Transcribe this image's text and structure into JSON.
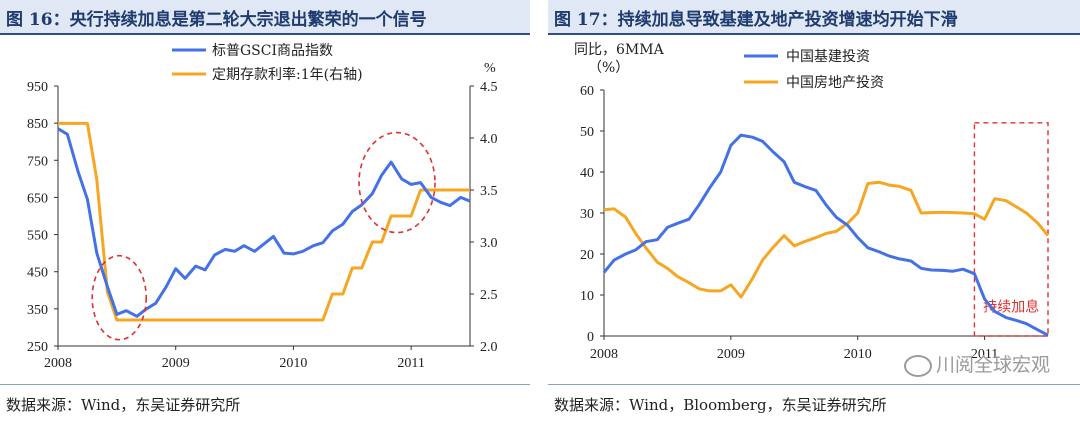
{
  "panels": [
    {
      "title": "图 16：央行持续加息是第二轮大宗退出繁荣的一个信号",
      "source": "数据来源：Wind，东吴证券研究所"
    },
    {
      "title": "图 17：持续加息导致基建及地产投资增速均开始下滑",
      "source": "数据来源：Wind，Bloomberg，东吴证券研究所"
    }
  ],
  "watermark": "川阅全球宏观",
  "colors": {
    "blue": "#4472e6",
    "orange": "#f5a623",
    "red_dash": "#e03030",
    "title_text": "#1f3b6f"
  },
  "chart_data": [
    {
      "type": "line",
      "y_left_ticks": [
        "950",
        "850",
        "750",
        "650",
        "550",
        "450",
        "350",
        "250"
      ],
      "ylim_left": [
        250,
        950
      ],
      "y_right_label": "%",
      "y_right_ticks": [
        "4.5",
        "4.0",
        "3.5",
        "3.0",
        "2.5",
        "2.0"
      ],
      "ylim_right": [
        2.0,
        4.5
      ],
      "x_ticks": [
        "2008",
        "2009",
        "2010",
        "2011"
      ],
      "xlim": [
        2008.0,
        2011.5
      ],
      "series": [
        {
          "name": "标普GSCI商品指数",
          "axis": "left",
          "color": "#4472e6",
          "x": [
            2008.0,
            2008.08,
            2008.17,
            2008.25,
            2008.33,
            2008.42,
            2008.5,
            2008.58,
            2008.67,
            2008.75,
            2008.83,
            2008.92,
            2009.0,
            2009.08,
            2009.17,
            2009.25,
            2009.33,
            2009.42,
            2009.5,
            2009.58,
            2009.67,
            2009.75,
            2009.83,
            2009.92,
            2010.0,
            2010.08,
            2010.17,
            2010.25,
            2010.33,
            2010.42,
            2010.5,
            2010.58,
            2010.67,
            2010.75,
            2010.83,
            2010.92,
            2011.0,
            2011.08,
            2011.17,
            2011.25,
            2011.33,
            2011.42,
            2011.5
          ],
          "values": [
            835,
            820,
            720,
            645,
            500,
            410,
            335,
            345,
            330,
            350,
            365,
            410,
            458,
            432,
            465,
            455,
            495,
            510,
            505,
            520,
            505,
            525,
            545,
            500,
            498,
            505,
            520,
            528,
            560,
            578,
            612,
            630,
            660,
            710,
            745,
            700,
            685,
            690,
            650,
            637,
            628,
            650,
            640
          ]
        },
        {
          "name": "定期存款利率:1年(右轴)",
          "axis": "right",
          "color": "#f5a623",
          "x": [
            2008.0,
            2008.25,
            2008.33,
            2008.42,
            2008.5,
            2008.58,
            2008.67,
            2008.83,
            2009.0,
            2010.0,
            2010.25,
            2010.33,
            2010.42,
            2010.5,
            2010.58,
            2010.67,
            2010.75,
            2010.83,
            2010.92,
            2011.0,
            2011.08,
            2011.25,
            2011.5
          ],
          "values": [
            4.14,
            4.14,
            3.6,
            2.52,
            2.25,
            2.25,
            2.25,
            2.25,
            2.25,
            2.25,
            2.25,
            2.5,
            2.5,
            2.75,
            2.75,
            3.0,
            3.0,
            3.25,
            3.25,
            3.25,
            3.5,
            3.5,
            3.5
          ]
        }
      ]
    },
    {
      "type": "line",
      "ylabel": "同比，6MMA（%）",
      "y_ticks": [
        "60",
        "50",
        "40",
        "30",
        "20",
        "10",
        "0"
      ],
      "ylim": [
        0,
        60
      ],
      "x_ticks": [
        "2008",
        "2009",
        "2010",
        "2011"
      ],
      "xlim": [
        2008.0,
        2011.5
      ],
      "annotation": "持续加息",
      "series": [
        {
          "name": "中国基建投资",
          "color": "#4472e6",
          "x": [
            2008.0,
            2008.08,
            2008.17,
            2008.25,
            2008.33,
            2008.42,
            2008.5,
            2008.58,
            2008.67,
            2008.75,
            2008.83,
            2008.92,
            2009.0,
            2009.08,
            2009.17,
            2009.25,
            2009.33,
            2009.42,
            2009.5,
            2009.58,
            2009.67,
            2009.75,
            2009.83,
            2009.92,
            2010.0,
            2010.08,
            2010.17,
            2010.25,
            2010.33,
            2010.42,
            2010.5,
            2010.58,
            2010.67,
            2010.75,
            2010.83,
            2010.92,
            2011.0,
            2011.08,
            2011.17,
            2011.25,
            2011.33,
            2011.42,
            2011.5
          ],
          "values": [
            15.5,
            18.5,
            20.0,
            21.0,
            23.0,
            23.5,
            26.5,
            27.5,
            28.5,
            32.0,
            36.0,
            40.0,
            46.5,
            49.0,
            48.5,
            47.5,
            45.0,
            42.5,
            37.5,
            36.5,
            35.5,
            32.0,
            29.0,
            27.0,
            24.0,
            21.5,
            20.5,
            19.5,
            18.8,
            18.3,
            16.5,
            16.1,
            16.0,
            15.8,
            16.3,
            15.2,
            9.0,
            6.0,
            4.5,
            3.8,
            3.0,
            1.5,
            0.2
          ]
        },
        {
          "name": "中国房地产投资",
          "color": "#f5a623",
          "x": [
            2008.0,
            2008.08,
            2008.17,
            2008.25,
            2008.33,
            2008.42,
            2008.5,
            2008.58,
            2008.67,
            2008.75,
            2008.83,
            2008.92,
            2009.0,
            2009.08,
            2009.17,
            2009.25,
            2009.33,
            2009.42,
            2009.5,
            2009.58,
            2009.67,
            2009.75,
            2009.83,
            2009.92,
            2010.0,
            2010.08,
            2010.17,
            2010.25,
            2010.33,
            2010.42,
            2010.5,
            2010.58,
            2010.67,
            2010.75,
            2010.83,
            2010.92,
            2011.0,
            2011.08,
            2011.17,
            2011.25,
            2011.33,
            2011.42,
            2011.5
          ],
          "values": [
            30.8,
            31.0,
            29.0,
            25.0,
            21.5,
            18.0,
            16.5,
            14.5,
            13.0,
            11.5,
            11.0,
            11.0,
            12.5,
            9.5,
            14.0,
            18.5,
            21.5,
            24.5,
            22.0,
            23.0,
            24.0,
            25.0,
            25.5,
            27.5,
            30.0,
            37.2,
            37.5,
            36.8,
            36.5,
            35.5,
            30.0,
            30.1,
            30.2,
            30.1,
            30.0,
            29.8,
            28.5,
            33.5,
            33.0,
            31.5,
            30.0,
            27.5,
            24.5
          ]
        }
      ]
    }
  ]
}
